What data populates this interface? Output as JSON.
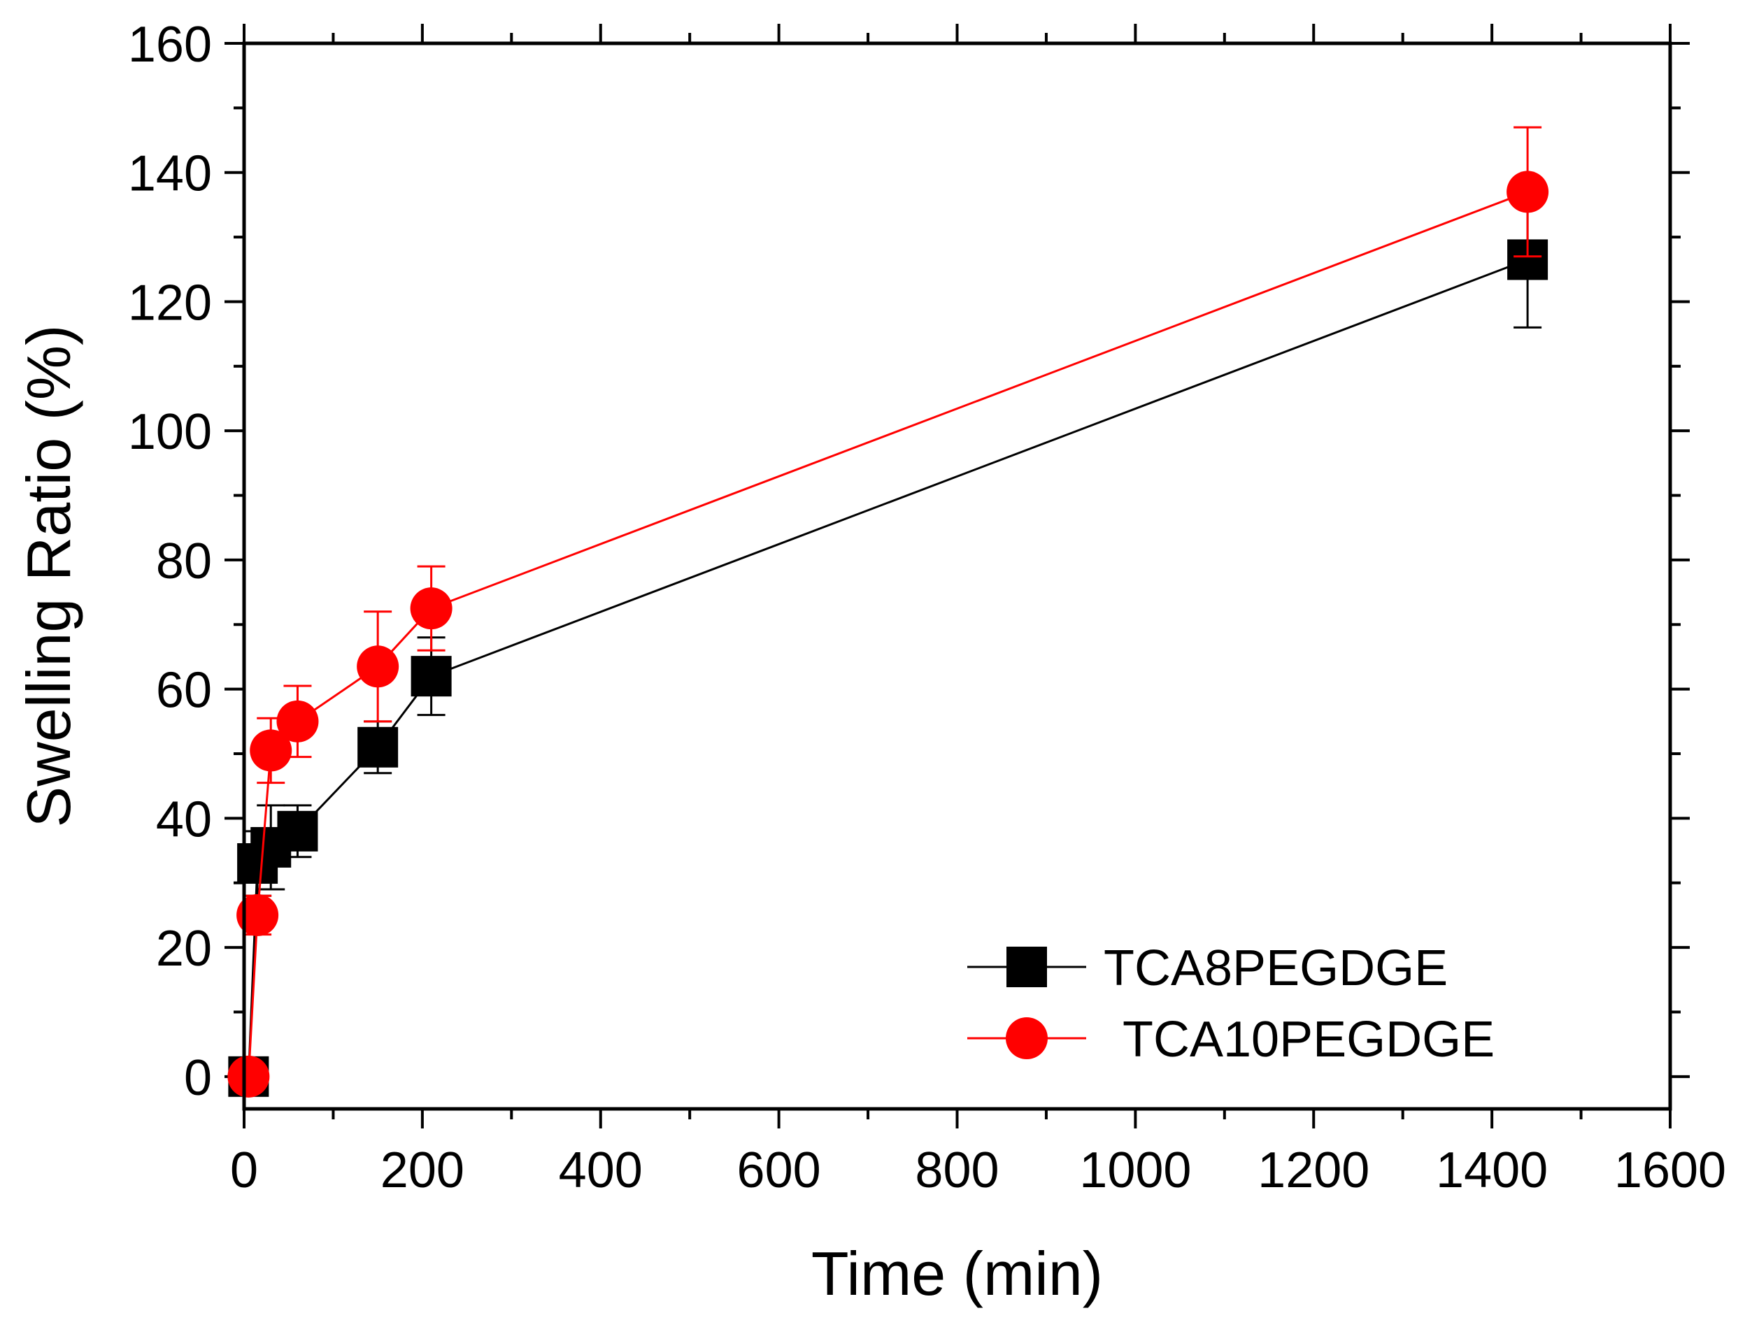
{
  "chart_data": {
    "type": "line",
    "title": "",
    "xlabel": "Time (min)",
    "ylabel": "Swelling Ratio (%)",
    "xlim": [
      0,
      1600
    ],
    "ylim": [
      -5,
      160
    ],
    "xticks": [
      0,
      200,
      400,
      600,
      800,
      1000,
      1200,
      1400,
      1600
    ],
    "yticks": [
      0,
      20,
      40,
      60,
      80,
      100,
      120,
      140,
      160
    ],
    "x_tick_labels": [
      "0",
      "200",
      "400",
      "600",
      "800",
      "1000",
      "1200",
      "1400",
      "1600"
    ],
    "y_tick_labels": [
      "0",
      "20",
      "40",
      "60",
      "80",
      "100",
      "120",
      "140",
      "160"
    ],
    "grid": false,
    "legend_position": "bottom-right",
    "series": [
      {
        "name": "TCA8PEGDGE",
        "color": "#000000",
        "marker": "square",
        "x": [
          5,
          15,
          30,
          60,
          150,
          210,
          1440
        ],
        "y": [
          0,
          33,
          35.5,
          38,
          51,
          62,
          126.5
        ],
        "err": [
          0,
          5,
          6.5,
          4,
          4,
          6,
          10.5
        ]
      },
      {
        "name": "TCA10PEGDGE",
        "color": "#ff0000",
        "marker": "circle",
        "x": [
          5,
          15,
          30,
          60,
          150,
          210,
          1440
        ],
        "y": [
          0,
          25,
          50.5,
          55,
          63.5,
          72.5,
          137
        ],
        "err": [
          0,
          3,
          5,
          5.5,
          8.5,
          6.5,
          10
        ]
      }
    ]
  }
}
